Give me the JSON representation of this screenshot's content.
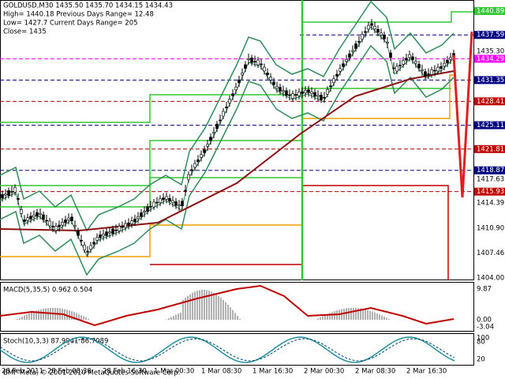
{
  "header": {
    "line1": "GOLDUSD,M30  1435.50 1435.70 1434.15 1434.43",
    "line2": "High= 1440.18    Previous Days Range= 12.48",
    "line3": "Low= 1427.7    Current Days Range= 205",
    "line4": "Close= 1435"
  },
  "price_labels": [
    "1440.89",
    "1437.59",
    "1435.30",
    "1434.29",
    "1431.35",
    "1428.41",
    "1425.11",
    "1421.81",
    "1418.87",
    "1417.63",
    "1415.93",
    "1414.39",
    "1410.90",
    "1407.46",
    "1404.00"
  ],
  "macd": {
    "label": "MACD(5,35,5) 0.962 0.504",
    "axis": [
      "9.87",
      "0.00",
      "-3.04"
    ]
  },
  "stoch": {
    "label": "Stoch(10,3,3) 87.9941 86.7089",
    "axis": [
      "100",
      "80",
      "20"
    ]
  },
  "time_labels": [
    "28 Feb 2011",
    "28 Feb 08:30",
    "28 Feb 16:30",
    "1 Mar 00:30",
    "1 Mar 08:30",
    "1 Mar 16:30",
    "2 Mar 00:30",
    "2 Mar 08:30",
    "2 Mar 16:30"
  ],
  "footer": "BMF Meta, © 2001-2010 MetaQuotes Software Corp."
}
